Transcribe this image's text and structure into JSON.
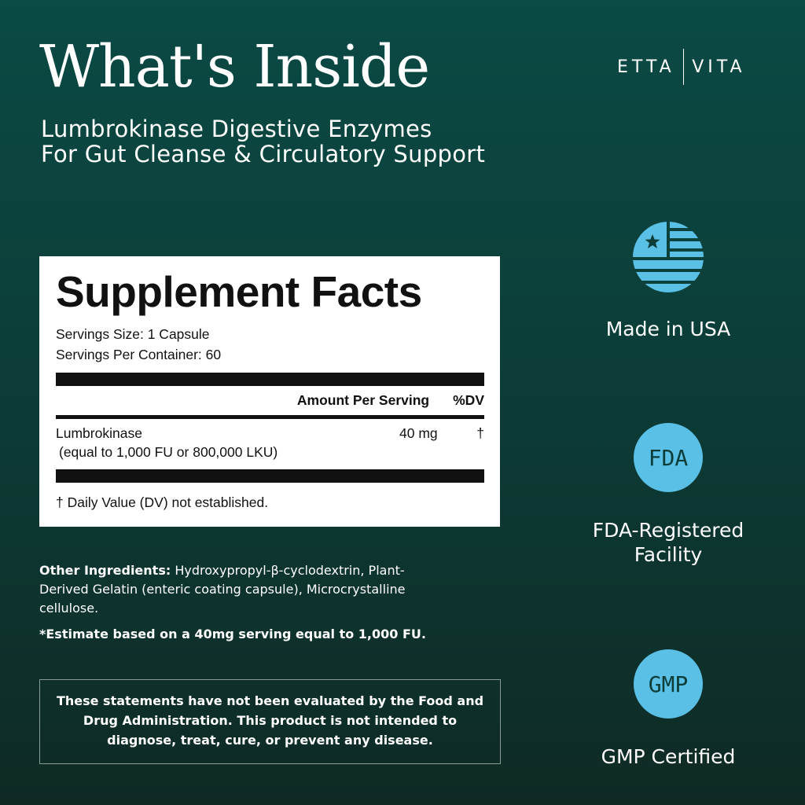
{
  "header": {
    "title": "What's Inside",
    "subtitle_line1": "Lumbrokinase Digestive Enzymes",
    "subtitle_line2": "For Gut Cleanse & Circulatory Support",
    "brand_left": "ETTA",
    "brand_right": "VITA"
  },
  "facts": {
    "title": "Supplement Facts",
    "serving_size": "Servings Size: 1 Capsule",
    "servings_per_container": "Servings Per Container: 60",
    "col_amount": "Amount Per Serving",
    "col_dv": "%DV",
    "rows": [
      {
        "name": "Lumbrokinase",
        "detail": "(equal to 1,000 FU or 800,000 LKU)",
        "amount": "40 mg",
        "dv": "†"
      }
    ],
    "footnote": "† Daily Value (DV) not established."
  },
  "other": {
    "label": "Other Ingredients:",
    "text": " Hydroxypropyl-β-cyclodextrin, Plant-Derived Gelatin (enteric coating capsule), Microcrystalline cellulose."
  },
  "estimate": "*Estimate based on a 40mg serving equal to 1,000 FU.",
  "disclaimer": "These statements have not been evaluated by the Food and Drug Administration. This product is not intended to diagnose, treat, cure, or prevent any disease.",
  "badges": [
    {
      "icon": "usa-flag-icon",
      "label": "Made in USA"
    },
    {
      "icon": "FDA",
      "label1": "FDA-Registered",
      "label2": "Facility"
    },
    {
      "icon": "GMP",
      "label": "GMP Certified"
    }
  ],
  "colors": {
    "accent": "#5bc0e6",
    "bg_top": "#0b4a45",
    "bg_bottom": "#0f2a25"
  }
}
